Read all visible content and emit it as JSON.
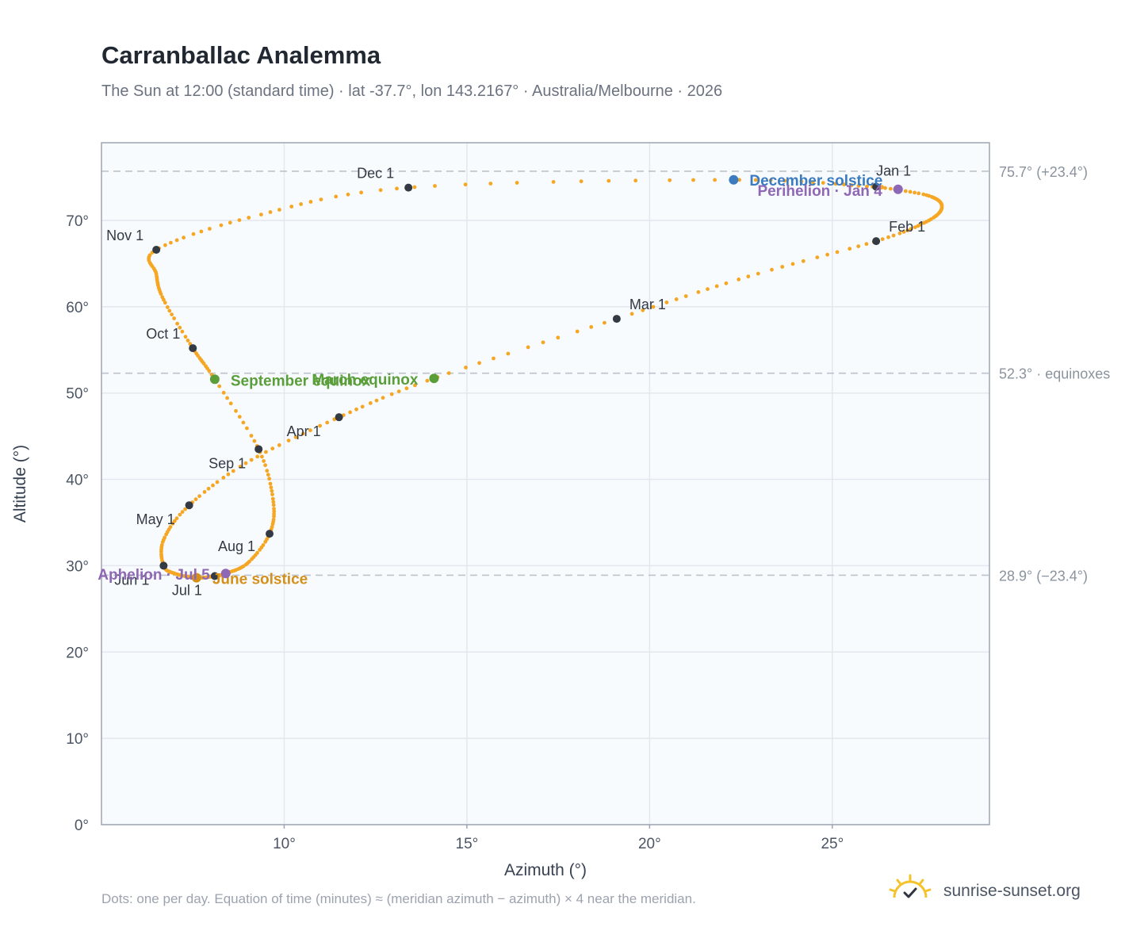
{
  "header": {
    "title": "Carranballac Analemma",
    "subtitle": "The Sun at 12:00 (standard time) · lat -37.7°, lon 143.2167° · Australia/Melbourne · 2026"
  },
  "footer": {
    "note": "Dots: one per day. Equation of time (minutes) ≈ (meridian azimuth − azimuth) × 4 near the meridian.",
    "brand": "sunrise-sunset.org",
    "brand_icon": "sun-check-icon"
  },
  "colors": {
    "path": "#f5a623",
    "month_dot": "#333a44",
    "solstice_dec": "#3b7bbf",
    "solstice_jun": "#d4901a",
    "equinox": "#5a9e3a",
    "apsis": "#8e67b5",
    "reference_line": "#bcc3cc",
    "grid": "#e3e8ee",
    "plot_bg": "#f8fbfe"
  },
  "chart_data": {
    "type": "scatter",
    "xlabel": "Azimuth (°)",
    "ylabel": "Altitude (°)",
    "xlim": [
      5,
      29.3
    ],
    "ylim": [
      0,
      79
    ],
    "x_ticks": [
      10,
      15,
      20,
      25
    ],
    "x_tick_labels": [
      "10°",
      "15°",
      "20°",
      "25°"
    ],
    "y_ticks": [
      0,
      10,
      20,
      30,
      40,
      50,
      60,
      70
    ],
    "y_tick_labels": [
      "0°",
      "10°",
      "20°",
      "30°",
      "40°",
      "50°",
      "60°",
      "70°"
    ],
    "grid": true,
    "reference_lines": [
      {
        "y": 75.7,
        "label": "75.7° (+23.4°)"
      },
      {
        "y": 52.3,
        "label": "52.3° · equinoxes"
      },
      {
        "y": 28.9,
        "label": "28.9° (−23.4°)"
      }
    ],
    "analemma_path": [
      {
        "date": "Jan 1",
        "x": 26.2,
        "y": 73.9
      },
      {
        "date": "Jan 11",
        "x": 27.6,
        "y": 72.9
      },
      {
        "date": "Jan 18",
        "x": 28.0,
        "y": 71.6
      },
      {
        "date": "Jan 25",
        "x": 27.6,
        "y": 69.9
      },
      {
        "date": "Feb 1",
        "x": 26.2,
        "y": 67.6
      },
      {
        "date": "Feb 15",
        "x": 22.7,
        "y": 63.5
      },
      {
        "date": "Mar 1",
        "x": 19.1,
        "y": 58.6
      },
      {
        "date": "Mar 20",
        "x": 14.1,
        "y": 51.7
      },
      {
        "date": "Apr 1",
        "x": 11.5,
        "y": 47.2
      },
      {
        "date": "Apr 15",
        "x": 9.0,
        "y": 42.0
      },
      {
        "date": "May 1",
        "x": 7.4,
        "y": 37.0
      },
      {
        "date": "May 15",
        "x": 6.7,
        "y": 33.0
      },
      {
        "date": "Jun 1",
        "x": 6.7,
        "y": 30.0
      },
      {
        "date": "Jun 10",
        "x": 7.0,
        "y": 29.1
      },
      {
        "date": "Jun 21",
        "x": 7.6,
        "y": 28.6
      },
      {
        "date": "Jul 1",
        "x": 8.1,
        "y": 28.8
      },
      {
        "date": "Jul 5",
        "x": 8.4,
        "y": 29.1
      },
      {
        "date": "Jul 15",
        "x": 9.0,
        "y": 30.3
      },
      {
        "date": "Aug 1",
        "x": 9.6,
        "y": 33.7
      },
      {
        "date": "Aug 15",
        "x": 9.7,
        "y": 37.5
      },
      {
        "date": "Sep 1",
        "x": 9.3,
        "y": 43.5
      },
      {
        "date": "Sep 23",
        "x": 8.1,
        "y": 51.6
      },
      {
        "date": "Oct 1",
        "x": 7.5,
        "y": 55.2
      },
      {
        "date": "Oct 15",
        "x": 6.7,
        "y": 60.8
      },
      {
        "date": "Oct 22",
        "x": 6.5,
        "y": 63.8
      },
      {
        "date": "Nov 1",
        "x": 6.5,
        "y": 66.6
      },
      {
        "date": "Nov 15",
        "x": 9.2,
        "y": 70.5
      },
      {
        "date": "Dec 1",
        "x": 13.4,
        "y": 73.8
      },
      {
        "date": "Dec 21",
        "x": 22.3,
        "y": 74.7
      },
      {
        "date": "Dec 31",
        "x": 26.1,
        "y": 73.9
      }
    ],
    "month_markers": [
      {
        "label": "Jan 1",
        "x": 26.2,
        "y": 73.9,
        "lx": 0,
        "ly": -14,
        "anchor": "start"
      },
      {
        "label": "Feb 1",
        "x": 26.2,
        "y": 67.6,
        "lx": 16,
        "ly": -12,
        "anchor": "start"
      },
      {
        "label": "Mar 1",
        "x": 19.1,
        "y": 58.6,
        "lx": 16,
        "ly": -12,
        "anchor": "start"
      },
      {
        "label": "Apr 1",
        "x": 11.5,
        "y": 47.2,
        "lx": -66,
        "ly": 24,
        "anchor": "start"
      },
      {
        "label": "May 1",
        "x": 7.4,
        "y": 37.0,
        "lx": -18,
        "ly": 24,
        "anchor": "end"
      },
      {
        "label": "Jun 1",
        "x": 6.7,
        "y": 30.0,
        "lx": -18,
        "ly": 24,
        "anchor": "end"
      },
      {
        "label": "Jul 1",
        "x": 8.1,
        "y": 28.8,
        "lx": -16,
        "ly": 24,
        "anchor": "end"
      },
      {
        "label": "Aug 1",
        "x": 9.6,
        "y": 33.7,
        "lx": -18,
        "ly": 22,
        "anchor": "end"
      },
      {
        "label": "Sep 1",
        "x": 9.3,
        "y": 43.5,
        "lx": -16,
        "ly": 24,
        "anchor": "end"
      },
      {
        "label": "Oct 1",
        "x": 7.5,
        "y": 55.2,
        "lx": -16,
        "ly": -12,
        "anchor": "end"
      },
      {
        "label": "Nov 1",
        "x": 6.5,
        "y": 66.6,
        "lx": -16,
        "ly": -12,
        "anchor": "end"
      },
      {
        "label": "Dec 1",
        "x": 13.4,
        "y": 73.8,
        "lx": -18,
        "ly": -12,
        "anchor": "end"
      }
    ],
    "events": [
      {
        "label": "December solstice",
        "x": 22.3,
        "y": 74.7,
        "color_key": "solstice_dec",
        "lx": 20,
        "ly": 7,
        "anchor": "start"
      },
      {
        "label": "Perihelion · Jan 4",
        "x": 26.8,
        "y": 73.6,
        "color_key": "apsis",
        "lx": -20,
        "ly": 8,
        "anchor": "end"
      },
      {
        "label": "March equinox",
        "x": 14.1,
        "y": 51.7,
        "color_key": "equinox",
        "lx": -20,
        "ly": 8,
        "anchor": "end"
      },
      {
        "label": "September equinox",
        "x": 8.1,
        "y": 51.6,
        "color_key": "equinox",
        "lx": 20,
        "ly": 8,
        "anchor": "start"
      },
      {
        "label": "June solstice",
        "x": 7.6,
        "y": 28.6,
        "color_key": "solstice_jun",
        "lx": 20,
        "ly": 8,
        "anchor": "start"
      },
      {
        "label": "Aphelion · Jul 5",
        "x": 8.4,
        "y": 29.1,
        "color_key": "apsis",
        "lx": -20,
        "ly": 8,
        "anchor": "end"
      }
    ]
  }
}
